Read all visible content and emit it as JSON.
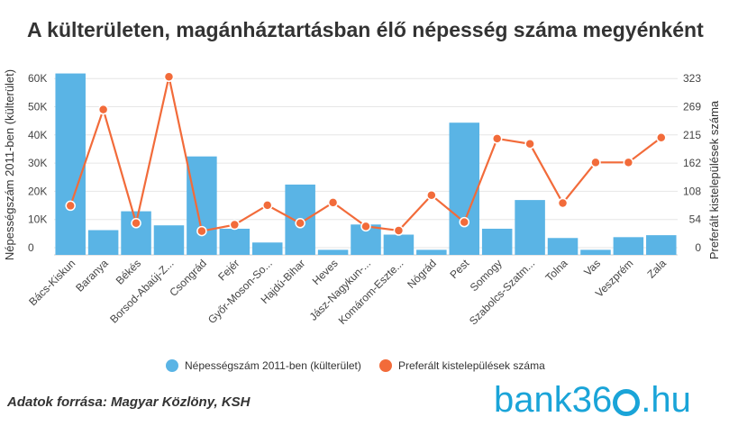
{
  "title": "A külterületen, magánháztartásban élő népesség száma megyénként",
  "source": "Adatok forrása: Magyar Közlöny, KSH",
  "logo": {
    "prefix": "bank36",
    "suffix": ".hu"
  },
  "colors": {
    "bar": "#5ab4e5",
    "line": "#f26b3a",
    "grid": "#e6e6e6"
  },
  "chart_data": {
    "type": "bar",
    "categories": [
      "Bács-Kiskun",
      "Baranya",
      "Békés",
      "Borsod-Abaúj-Z...",
      "Csongrád",
      "Fejér",
      "Győr-Moson-So...",
      "Hajdú-Bihar",
      "Heves",
      "Jász-Nagykun-...",
      "Komárom-Eszte...",
      "Nógrád",
      "Pest",
      "Somogy",
      "Szabolcs-Szatm...",
      "Tolna",
      "Vas",
      "Veszprém",
      "Zala"
    ],
    "series": [
      {
        "name": "Népességszám 2011-ben (külterület)",
        "type": "bar",
        "axis": "left",
        "values": [
          64500,
          8800,
          15500,
          10500,
          35000,
          9300,
          4400,
          25000,
          1800,
          10800,
          7200,
          1800,
          47000,
          9300,
          19500,
          6000,
          1800,
          6300,
          7000
        ]
      },
      {
        "name": "Preferált kistelepülések száma",
        "type": "line",
        "axis": "right",
        "values": [
          93,
          275,
          60,
          337,
          45,
          57,
          94,
          60,
          99,
          54,
          46,
          113,
          62,
          220,
          210,
          98,
          175,
          175,
          222
        ]
      }
    ],
    "yleft": {
      "label": "Népességszám 2011-ben (külterület)",
      "ticks": [
        "0",
        "10K",
        "20K",
        "30K",
        "40K",
        "50K",
        "60K"
      ],
      "max": 65000
    },
    "yright": {
      "label": "Preferált kistelepülések száma",
      "ticks": [
        "0",
        "54",
        "108",
        "162",
        "215",
        "269",
        "323"
      ],
      "max": 346
    },
    "grid": true,
    "legend": "bottom"
  }
}
